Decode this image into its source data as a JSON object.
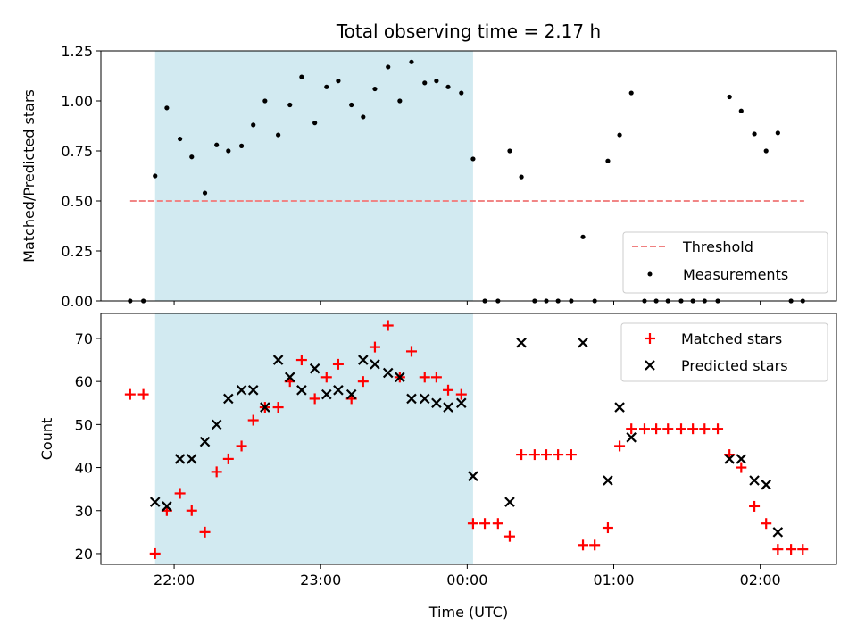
{
  "chart_data": {
    "title": "Total observing time = 2.17 h",
    "xlabel": "Time (UTC)",
    "x_ticks": [
      {
        "t": 22.0,
        "label": "22:00"
      },
      {
        "t": 23.0,
        "label": "23:00"
      },
      {
        "t": 24.0,
        "label": "00:00"
      },
      {
        "t": 25.0,
        "label": "01:00"
      },
      {
        "t": 26.0,
        "label": "02:00"
      }
    ],
    "xlim": [
      21.5,
      26.52
    ],
    "shade": {
      "from": 21.87,
      "to": 24.04,
      "color": "#add8e6"
    },
    "panels": [
      {
        "type": "scatter",
        "ylabel": "Matched/Predicted stars",
        "ylim": [
          0,
          1.25
        ],
        "yticks": [
          "0.00",
          "0.25",
          "0.50",
          "0.75",
          "1.00",
          "1.25"
        ],
        "legend_position": "lower-right",
        "threshold": {
          "name": "Threshold",
          "y": 0.5,
          "x": [
            21.7,
            26.3
          ],
          "color": "#f08080"
        },
        "series": [
          {
            "name": "Measurements",
            "color": "#000000",
            "marker": "dot",
            "points": [
              [
                21.7,
                0.0
              ],
              [
                21.79,
                0.0
              ],
              [
                21.87,
                0.625
              ],
              [
                21.95,
                0.965
              ],
              [
                22.04,
                0.81
              ],
              [
                22.12,
                0.72
              ],
              [
                22.21,
                0.54
              ],
              [
                22.29,
                0.78
              ],
              [
                22.37,
                0.75
              ],
              [
                22.46,
                0.775
              ],
              [
                22.54,
                0.88
              ],
              [
                22.62,
                1.0
              ],
              [
                22.71,
                0.83
              ],
              [
                22.79,
                0.98
              ],
              [
                22.87,
                1.12
              ],
              [
                22.96,
                0.89
              ],
              [
                23.04,
                1.07
              ],
              [
                23.12,
                1.1
              ],
              [
                23.21,
                0.98
              ],
              [
                23.29,
                0.92
              ],
              [
                23.37,
                1.06
              ],
              [
                23.46,
                1.17
              ],
              [
                23.54,
                1.0
              ],
              [
                23.62,
                1.195
              ],
              [
                23.71,
                1.09
              ],
              [
                23.79,
                1.1
              ],
              [
                23.87,
                1.07
              ],
              [
                23.96,
                1.04
              ],
              [
                24.04,
                0.71
              ],
              [
                24.12,
                0.0
              ],
              [
                24.21,
                0.0
              ],
              [
                24.29,
                0.75
              ],
              [
                24.37,
                0.62
              ],
              [
                24.46,
                0.0
              ],
              [
                24.54,
                0.0
              ],
              [
                24.62,
                0.0
              ],
              [
                24.71,
                0.0
              ],
              [
                24.79,
                0.32
              ],
              [
                24.87,
                0.0
              ],
              [
                24.96,
                0.7
              ],
              [
                25.04,
                0.83
              ],
              [
                25.12,
                1.04
              ],
              [
                25.21,
                0.0
              ],
              [
                25.29,
                0.0
              ],
              [
                25.37,
                0.0
              ],
              [
                25.46,
                0.0
              ],
              [
                25.54,
                0.0
              ],
              [
                25.62,
                0.0
              ],
              [
                25.71,
                0.0
              ],
              [
                25.79,
                1.02
              ],
              [
                25.87,
                0.95
              ],
              [
                25.96,
                0.835
              ],
              [
                26.04,
                0.75
              ],
              [
                26.12,
                0.84
              ],
              [
                26.21,
                0.0
              ],
              [
                26.29,
                0.0
              ]
            ]
          }
        ]
      },
      {
        "type": "scatter",
        "ylabel": "Count",
        "ylim": [
          17.5,
          75.8
        ],
        "yticks": [
          "20",
          "30",
          "40",
          "50",
          "60",
          "70"
        ],
        "legend_position": "upper-right",
        "series": [
          {
            "name": "Matched stars",
            "color": "#ff0000",
            "marker": "plus",
            "points": [
              [
                21.7,
                57
              ],
              [
                21.79,
                57
              ],
              [
                21.87,
                20
              ],
              [
                21.95,
                30
              ],
              [
                22.04,
                34
              ],
              [
                22.12,
                30
              ],
              [
                22.21,
                25
              ],
              [
                22.29,
                39
              ],
              [
                22.37,
                42
              ],
              [
                22.46,
                45
              ],
              [
                22.54,
                51
              ],
              [
                22.62,
                54
              ],
              [
                22.71,
                54
              ],
              [
                22.79,
                60
              ],
              [
                22.87,
                65
              ],
              [
                22.96,
                56
              ],
              [
                23.04,
                61
              ],
              [
                23.12,
                64
              ],
              [
                23.21,
                56
              ],
              [
                23.29,
                60
              ],
              [
                23.37,
                68
              ],
              [
                23.46,
                73
              ],
              [
                23.54,
                61
              ],
              [
                23.62,
                67
              ],
              [
                23.71,
                61
              ],
              [
                23.79,
                61
              ],
              [
                23.87,
                58
              ],
              [
                23.96,
                57
              ],
              [
                24.04,
                27
              ],
              [
                24.12,
                27
              ],
              [
                24.21,
                27
              ],
              [
                24.29,
                24
              ],
              [
                24.37,
                43
              ],
              [
                24.46,
                43
              ],
              [
                24.54,
                43
              ],
              [
                24.62,
                43
              ],
              [
                24.71,
                43
              ],
              [
                24.79,
                22
              ],
              [
                24.87,
                22
              ],
              [
                24.96,
                26
              ],
              [
                25.04,
                45
              ],
              [
                25.12,
                49
              ],
              [
                25.21,
                49
              ],
              [
                25.29,
                49
              ],
              [
                25.37,
                49
              ],
              [
                25.46,
                49
              ],
              [
                25.54,
                49
              ],
              [
                25.62,
                49
              ],
              [
                25.71,
                49
              ],
              [
                25.79,
                43
              ],
              [
                25.87,
                40
              ],
              [
                25.96,
                31
              ],
              [
                26.04,
                27
              ],
              [
                26.12,
                21
              ],
              [
                26.21,
                21
              ],
              [
                26.29,
                21
              ]
            ]
          },
          {
            "name": "Predicted stars",
            "color": "#000000",
            "marker": "cross",
            "points": [
              [
                21.87,
                32
              ],
              [
                21.95,
                31
              ],
              [
                22.04,
                42
              ],
              [
                22.12,
                42
              ],
              [
                22.21,
                46
              ],
              [
                22.29,
                50
              ],
              [
                22.37,
                56
              ],
              [
                22.46,
                58
              ],
              [
                22.54,
                58
              ],
              [
                22.62,
                54
              ],
              [
                22.71,
                65
              ],
              [
                22.79,
                61
              ],
              [
                22.87,
                58
              ],
              [
                22.96,
                63
              ],
              [
                23.04,
                57
              ],
              [
                23.12,
                58
              ],
              [
                23.21,
                57
              ],
              [
                23.29,
                65
              ],
              [
                23.37,
                64
              ],
              [
                23.46,
                62
              ],
              [
                23.54,
                61
              ],
              [
                23.62,
                56
              ],
              [
                23.71,
                56
              ],
              [
                23.79,
                55
              ],
              [
                23.87,
                54
              ],
              [
                23.96,
                55
              ],
              [
                24.04,
                38
              ],
              [
                24.29,
                32
              ],
              [
                24.37,
                69
              ],
              [
                24.79,
                69
              ],
              [
                24.96,
                37
              ],
              [
                25.04,
                54
              ],
              [
                25.12,
                47
              ],
              [
                25.79,
                42
              ],
              [
                25.87,
                42
              ],
              [
                25.96,
                37
              ],
              [
                26.04,
                36
              ],
              [
                26.12,
                25
              ]
            ]
          }
        ]
      }
    ]
  }
}
